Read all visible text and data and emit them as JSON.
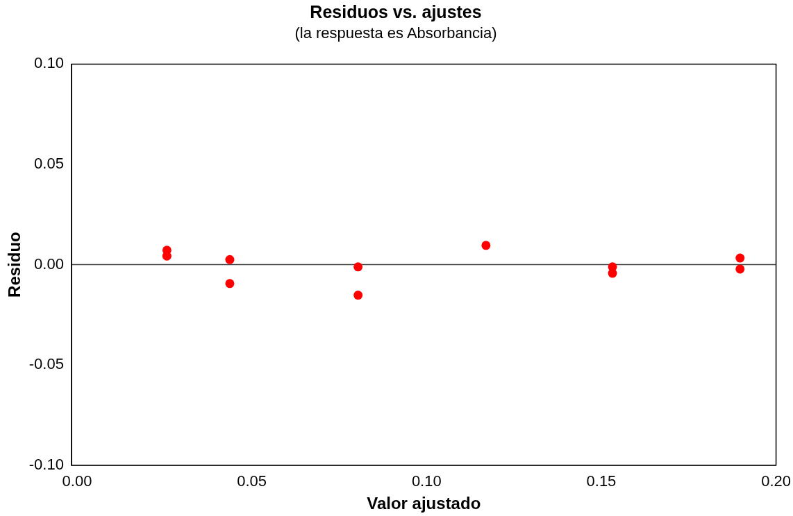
{
  "chart_data": {
    "type": "scatter",
    "title": "Residuos vs. ajustes",
    "subtitle": "(la respuesta es Absorbancia)",
    "xlabel": "Valor ajustado",
    "ylabel": "Residuo",
    "x": [
      0.0257,
      0.0257,
      0.0437,
      0.0437,
      0.0804,
      0.0804,
      0.117,
      0.1532,
      0.1532,
      0.1897,
      0.1897
    ],
    "series": [
      {
        "color": "#ff0000",
        "values": [
          0.0072,
          0.0043,
          0.0025,
          -0.0094,
          -0.0011,
          -0.0152,
          0.0096,
          -0.0011,
          -0.0043,
          0.0033,
          -0.0022
        ]
      }
    ],
    "xlim": [
      -0.0016,
      0.2
    ],
    "ylim": [
      -0.1,
      0.1
    ],
    "xticks": [
      {
        "value": 0,
        "label": "0.00"
      },
      {
        "value": 0.05,
        "label": "0.05"
      },
      {
        "value": 0.1,
        "label": "0.10"
      },
      {
        "value": 0.15,
        "label": "0.15"
      },
      {
        "value": 0.2,
        "label": "0.20"
      }
    ],
    "yticks": [
      {
        "value": -0.1,
        "label": "-0.10"
      },
      {
        "value": -0.05,
        "label": "-0.05"
      },
      {
        "value": 0,
        "label": "0.00"
      },
      {
        "value": 0.05,
        "label": "0.05"
      },
      {
        "value": 0.1,
        "label": "0.10"
      }
    ],
    "ref_lines": [
      {
        "axis": "y",
        "value": 0,
        "color": "#404040"
      }
    ],
    "grid": false,
    "legend": false,
    "marker": "circle"
  }
}
